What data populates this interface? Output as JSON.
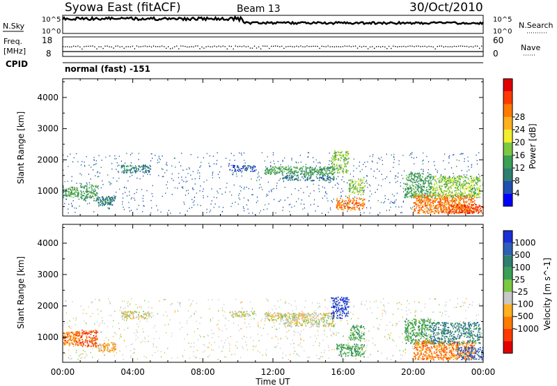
{
  "header": {
    "station": "Syowa East (fitACF)",
    "beam": "Beam 13",
    "date": "30/Oct/2010"
  },
  "status_panels": {
    "nsky_label": "N.Sky",
    "nsearch_label": "N.Search",
    "freq_label_line1": "Freq.",
    "freq_label_line2": "[MHz]",
    "nave_label": "Nave",
    "cpid_label": "CPID",
    "cpid_value": "normal (fast) -151",
    "noise_tick_top": "10^5",
    "noise_tick_bottom": "10^0",
    "freq_ticks": [
      "18",
      "8"
    ],
    "nave_ticks": [
      "60",
      "0"
    ]
  },
  "time_axis": {
    "label": "Time UT",
    "ticks": [
      "00:00",
      "04:00",
      "08:00",
      "12:00",
      "16:00",
      "20:00",
      "00:00"
    ]
  },
  "chart_data": [
    {
      "type": "heatmap",
      "name": "power",
      "ylabel": "Slant Range [km]",
      "yticks": [
        1000,
        2000,
        3000,
        4000
      ],
      "ylim": [
        200,
        4600
      ],
      "xlim_hours": [
        0,
        24
      ],
      "colorbar_label": "Power [dB]",
      "colorbar_ticks": [
        "4",
        "8",
        "12",
        "16",
        "20",
        "24",
        "28"
      ],
      "colorbar_colors": [
        "#0000ff",
        "#1f4fb0",
        "#2e7f6e",
        "#3aa055",
        "#7dc843",
        "#f2ee2e",
        "#ffb020",
        "#ff7a00",
        "#ff3a00",
        "#e00000"
      ],
      "regions": [
        {
          "t0": 0.0,
          "t1": 0.9,
          "r0": 800,
          "r1": 1150,
          "level": 3,
          "density": 0.7
        },
        {
          "t0": 1.0,
          "t1": 2.0,
          "r0": 700,
          "r1": 1250,
          "level": 3,
          "density": 0.5
        },
        {
          "t0": 2.0,
          "t1": 3.0,
          "r0": 550,
          "r1": 850,
          "level": 2,
          "density": 0.7
        },
        {
          "t0": 3.3,
          "t1": 5.0,
          "r0": 1600,
          "r1": 1850,
          "level": 2,
          "density": 0.6
        },
        {
          "t0": 9.5,
          "t1": 11.0,
          "r0": 1650,
          "r1": 1850,
          "level": 1,
          "density": 0.5
        },
        {
          "t0": 11.5,
          "t1": 15.5,
          "r0": 1550,
          "r1": 1800,
          "level": 3,
          "density": 0.7
        },
        {
          "t0": 12.5,
          "t1": 15.5,
          "r0": 1350,
          "r1": 1550,
          "level": 2,
          "density": 0.5
        },
        {
          "t0": 15.3,
          "t1": 16.3,
          "r0": 1600,
          "r1": 2300,
          "level": 4,
          "density": 0.5
        },
        {
          "t0": 15.6,
          "t1": 17.2,
          "r0": 400,
          "r1": 800,
          "level": 7,
          "density": 0.6
        },
        {
          "t0": 16.3,
          "t1": 17.2,
          "r0": 900,
          "r1": 1400,
          "level": 4,
          "density": 0.5
        },
        {
          "t0": 19.5,
          "t1": 21.0,
          "r0": 800,
          "r1": 1600,
          "level": 3,
          "density": 0.6
        },
        {
          "t0": 20.0,
          "t1": 23.5,
          "r0": 300,
          "r1": 900,
          "level": 7,
          "density": 0.7
        },
        {
          "t0": 21.0,
          "t1": 23.8,
          "r0": 800,
          "r1": 1500,
          "level": 4,
          "density": 0.6
        },
        {
          "t0": 22.0,
          "t1": 24.0,
          "r0": 300,
          "r1": 600,
          "level": 8,
          "density": 0.6
        }
      ]
    },
    {
      "type": "heatmap",
      "name": "velocity",
      "ylabel": "Slant Range [km]",
      "yticks": [
        1000,
        2000,
        3000,
        4000
      ],
      "ylim": [
        200,
        4600
      ],
      "xlim_hours": [
        0,
        24
      ],
      "colorbar_label": "Velocity [m s^-1]",
      "colorbar_ticks": [
        "1000",
        "500",
        "100",
        "25",
        "-25",
        "-100",
        "-500",
        "-1000"
      ],
      "colorbar_colors": [
        "#1a2fd6",
        "#2d5fb8",
        "#2e7f6e",
        "#3aa055",
        "#7dc843",
        "#c8c8c8",
        "#ffb020",
        "#ff7a00",
        "#ff3a00",
        "#e00000"
      ],
      "regions": [
        {
          "t0": 0.0,
          "t1": 1.0,
          "r0": 750,
          "r1": 1200,
          "level": 7,
          "density": 0.8
        },
        {
          "t0": 1.0,
          "t1": 2.0,
          "r0": 700,
          "r1": 1250,
          "level": 8,
          "density": 0.5
        },
        {
          "t0": 2.0,
          "t1": 3.0,
          "r0": 550,
          "r1": 850,
          "level": 6,
          "density": 0.8
        },
        {
          "t0": 3.3,
          "t1": 5.0,
          "r0": 1600,
          "r1": 1850,
          "level": 5,
          "density": 0.6
        },
        {
          "t0": 9.5,
          "t1": 11.0,
          "r0": 1650,
          "r1": 1850,
          "level": 5,
          "density": 0.5
        },
        {
          "t0": 11.5,
          "t1": 15.5,
          "r0": 1550,
          "r1": 1800,
          "level": 5,
          "density": 0.7
        },
        {
          "t0": 12.5,
          "t1": 15.5,
          "r0": 1350,
          "r1": 1550,
          "level": 5,
          "density": 0.5
        },
        {
          "t0": 15.3,
          "t1": 16.3,
          "r0": 1600,
          "r1": 2300,
          "level": 0,
          "density": 0.5
        },
        {
          "t0": 15.6,
          "t1": 17.2,
          "r0": 400,
          "r1": 800,
          "level": 3,
          "density": 0.6
        },
        {
          "t0": 16.3,
          "t1": 17.2,
          "r0": 900,
          "r1": 1400,
          "level": 3,
          "density": 0.5
        },
        {
          "t0": 19.5,
          "t1": 21.0,
          "r0": 800,
          "r1": 1600,
          "level": 3,
          "density": 0.6
        },
        {
          "t0": 20.0,
          "t1": 23.5,
          "r0": 300,
          "r1": 900,
          "level": 7,
          "density": 0.6
        },
        {
          "t0": 21.0,
          "t1": 23.8,
          "r0": 800,
          "r1": 1500,
          "level": 2,
          "density": 0.5
        },
        {
          "t0": 22.5,
          "t1": 24.0,
          "r0": 300,
          "r1": 700,
          "level": 1,
          "density": 0.5
        }
      ]
    }
  ]
}
